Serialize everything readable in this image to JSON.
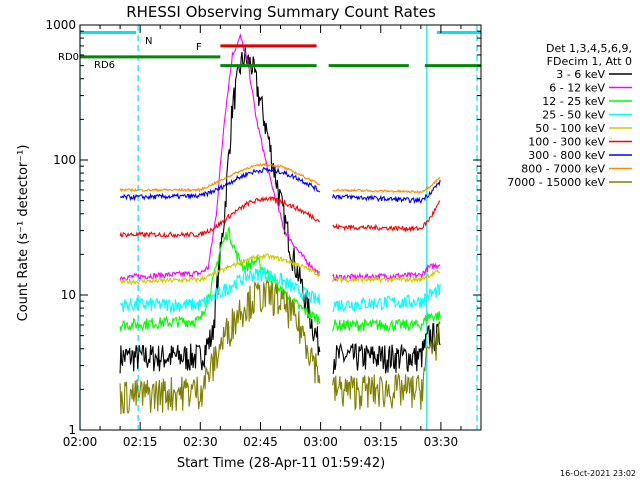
{
  "chart_data": {
    "type": "line",
    "title": "RHESSI Observing Summary Count Rates",
    "xlabel": "Start Time (28-Apr-11 01:59:42)",
    "ylabel": "Count Rate (s⁻¹ detector⁻¹)",
    "yscale": "log",
    "ylim": [
      1,
      1000
    ],
    "xlim_minutes": [
      0,
      100
    ],
    "x_ticks": [
      "02:00",
      "02:15",
      "02:30",
      "02:45",
      "03:00",
      "03:15",
      "03:30"
    ],
    "y_ticks": [
      "1",
      "10",
      "100",
      "1000"
    ],
    "timestamp": "16-Oct-2021 23:02",
    "legend_header": [
      "Det 1,3,4,5,6,9,",
      "FDecim 1, Att 0"
    ],
    "legend_position": "right",
    "flags": [
      {
        "label": "N",
        "color": "#00e5e5",
        "y": 880,
        "segments": [
          [
            0,
            14
          ],
          [
            89,
            100
          ]
        ]
      },
      {
        "label": "F",
        "color": "#e00000",
        "y": 700,
        "segments": [
          [
            35,
            59
          ]
        ]
      },
      {
        "label": "RD0",
        "color": "#008800",
        "y": 580,
        "segments": [
          [
            0,
            35
          ]
        ]
      },
      {
        "label": "RD6",
        "color": "#008800",
        "y": 500,
        "segments": [
          [
            35,
            59
          ],
          [
            62,
            82
          ],
          [
            86,
            100
          ]
        ]
      }
    ],
    "vertical_lines": [
      {
        "color": "#00e5e5",
        "style": "solid",
        "x": 0
      },
      {
        "color": "#00e5e5",
        "style": "dashed",
        "x": 14.5
      },
      {
        "color": "#00e5e5",
        "style": "solid",
        "x": 86.5
      },
      {
        "color": "#00e5e5",
        "style": "dashed",
        "x": 99
      }
    ],
    "series": [
      {
        "name": "3 - 6 keV",
        "color": "#000000",
        "noise": 0.25,
        "points": [
          [
            10,
            3.5
          ],
          [
            30,
            3.5
          ],
          [
            33,
            5
          ],
          [
            36,
            40
          ],
          [
            38,
            250
          ],
          [
            40,
            500
          ],
          [
            41,
            580
          ],
          [
            43,
            500
          ],
          [
            46,
            200
          ],
          [
            50,
            50
          ],
          [
            53,
            20
          ],
          [
            56,
            10
          ],
          [
            58,
            6
          ],
          [
            60,
            4
          ],
          [
            63,
            3.5
          ],
          [
            85,
            3.5
          ],
          [
            87,
            5
          ],
          [
            90,
            5
          ]
        ]
      },
      {
        "name": "6 - 12 keV",
        "color": "#ff00ff",
        "noise": 0.05,
        "points": [
          [
            10,
            13.5
          ],
          [
            30,
            14.5
          ],
          [
            32,
            16
          ],
          [
            34,
            40
          ],
          [
            36,
            200
          ],
          [
            38,
            600
          ],
          [
            40,
            820
          ],
          [
            42,
            500
          ],
          [
            44,
            200
          ],
          [
            47,
            80
          ],
          [
            51,
            30
          ],
          [
            55,
            20
          ],
          [
            58,
            16
          ],
          [
            60,
            14
          ],
          [
            63,
            13.5
          ],
          [
            85,
            14
          ],
          [
            87,
            16
          ],
          [
            90,
            17
          ]
        ]
      },
      {
        "name": "12 - 25 keV",
        "color": "#00ff00",
        "noise": 0.1,
        "points": [
          [
            10,
            6
          ],
          [
            30,
            6.5
          ],
          [
            33,
            12
          ],
          [
            35,
            22
          ],
          [
            37,
            30
          ],
          [
            39,
            20
          ],
          [
            41,
            16
          ],
          [
            44,
            18
          ],
          [
            47,
            14
          ],
          [
            51,
            10
          ],
          [
            55,
            8
          ],
          [
            58,
            7
          ],
          [
            60,
            6.5
          ],
          [
            63,
            6
          ],
          [
            85,
            6
          ],
          [
            87,
            7
          ],
          [
            90,
            7
          ]
        ]
      },
      {
        "name": "25 - 50 keV",
        "color": "#00ffff",
        "noise": 0.12,
        "points": [
          [
            10,
            8.5
          ],
          [
            30,
            8.5
          ],
          [
            34,
            10
          ],
          [
            38,
            12
          ],
          [
            42,
            14
          ],
          [
            46,
            14.5
          ],
          [
            50,
            13
          ],
          [
            54,
            11
          ],
          [
            58,
            9.5
          ],
          [
            60,
            9
          ],
          [
            63,
            8.5
          ],
          [
            85,
            9
          ],
          [
            87,
            10
          ],
          [
            90,
            11
          ]
        ]
      },
      {
        "name": "50 - 100 keV",
        "color": "#cccc00",
        "noise": 0.04,
        "points": [
          [
            10,
            12.5
          ],
          [
            30,
            13
          ],
          [
            34,
            14.5
          ],
          [
            38,
            16.5
          ],
          [
            42,
            18.5
          ],
          [
            46,
            19.5
          ],
          [
            50,
            18.5
          ],
          [
            54,
            17
          ],
          [
            58,
            15
          ],
          [
            60,
            14
          ],
          [
            63,
            13
          ],
          [
            85,
            13
          ],
          [
            87,
            14
          ],
          [
            90,
            15
          ]
        ]
      },
      {
        "name": "100 - 300 keV",
        "color": "#ff0000",
        "noise": 0.04,
        "points": [
          [
            10,
            28
          ],
          [
            30,
            28
          ],
          [
            34,
            32
          ],
          [
            38,
            40
          ],
          [
            42,
            48
          ],
          [
            46,
            52
          ],
          [
            50,
            50
          ],
          [
            54,
            44
          ],
          [
            58,
            38
          ],
          [
            60,
            35
          ],
          [
            63,
            32
          ],
          [
            85,
            31
          ],
          [
            87,
            36
          ],
          [
            90,
            50
          ]
        ]
      },
      {
        "name": "300 - 800 keV",
        "color": "#0000ff",
        "noise": 0.04,
        "points": [
          [
            10,
            53
          ],
          [
            30,
            54
          ],
          [
            34,
            60
          ],
          [
            38,
            70
          ],
          [
            42,
            80
          ],
          [
            46,
            85
          ],
          [
            50,
            82
          ],
          [
            54,
            74
          ],
          [
            58,
            64
          ],
          [
            60,
            58
          ],
          [
            63,
            54
          ],
          [
            85,
            50
          ],
          [
            87,
            56
          ],
          [
            90,
            70
          ]
        ]
      },
      {
        "name": "800 - 7000 keV",
        "color": "#ff8c00",
        "noise": 0.02,
        "points": [
          [
            10,
            60
          ],
          [
            30,
            60
          ],
          [
            34,
            68
          ],
          [
            38,
            78
          ],
          [
            42,
            88
          ],
          [
            46,
            93
          ],
          [
            50,
            90
          ],
          [
            54,
            80
          ],
          [
            58,
            70
          ],
          [
            60,
            65
          ],
          [
            63,
            60
          ],
          [
            85,
            58
          ],
          [
            87,
            63
          ],
          [
            90,
            75
          ]
        ]
      },
      {
        "name": "7000 - 15000 keV",
        "color": "#808000",
        "noise": 0.3,
        "points": [
          [
            10,
            1.8
          ],
          [
            30,
            2
          ],
          [
            33,
            3
          ],
          [
            36,
            5
          ],
          [
            40,
            8
          ],
          [
            44,
            10
          ],
          [
            48,
            10
          ],
          [
            52,
            8
          ],
          [
            56,
            5
          ],
          [
            58,
            3.5
          ],
          [
            60,
            2.5
          ],
          [
            63,
            2
          ],
          [
            85,
            2
          ],
          [
            87,
            4
          ],
          [
            90,
            5
          ]
        ]
      }
    ],
    "gaps_minutes": [
      [
        10,
        60
      ],
      [
        63,
        90
      ]
    ]
  }
}
